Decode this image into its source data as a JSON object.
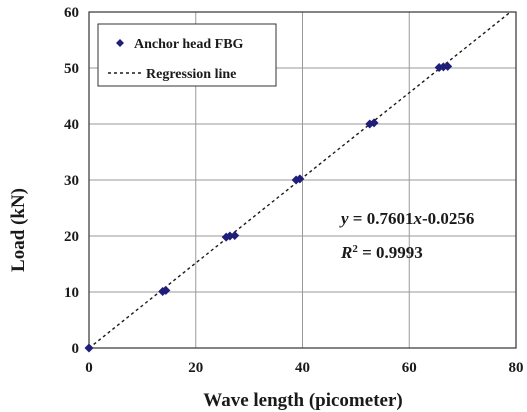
{
  "chart_data": {
    "type": "scatter",
    "title": "",
    "xlabel": "Wave length (picometer)",
    "ylabel": "Load (kN)",
    "xlim": [
      0,
      80
    ],
    "ylim": [
      0,
      60
    ],
    "x_ticks": [
      0,
      20,
      40,
      60,
      80
    ],
    "y_ticks": [
      0,
      10,
      20,
      30,
      40,
      50,
      60
    ],
    "grid": true,
    "legend_position": "top-left",
    "series": [
      {
        "name": "Anchor head FBG",
        "marker": "diamond",
        "color": "#1f1f7a",
        "points": [
          [
            0,
            0
          ],
          [
            13.8,
            10.1
          ],
          [
            14.4,
            10.3
          ],
          [
            25.7,
            19.8
          ],
          [
            26.4,
            20.0
          ],
          [
            27.3,
            20.1
          ],
          [
            38.8,
            30.0
          ],
          [
            39.5,
            30.2
          ],
          [
            52.6,
            40.0
          ],
          [
            53.4,
            40.2
          ],
          [
            65.6,
            50.1
          ],
          [
            66.4,
            50.2
          ],
          [
            67.2,
            50.3
          ]
        ]
      }
    ],
    "regression": {
      "name": "Regression line",
      "slope": 0.7601,
      "intercept": -0.0256,
      "color": "#1a1a1a",
      "dash": "dashed"
    },
    "annotations": {
      "equation": {
        "y_var": "y",
        "eq_sign": " = 0.7601",
        "x_var": "x",
        "const": "-0.0256"
      },
      "r_squared": {
        "r_var": "R",
        "sup": "2",
        "rest": " = 0.9993"
      }
    }
  }
}
